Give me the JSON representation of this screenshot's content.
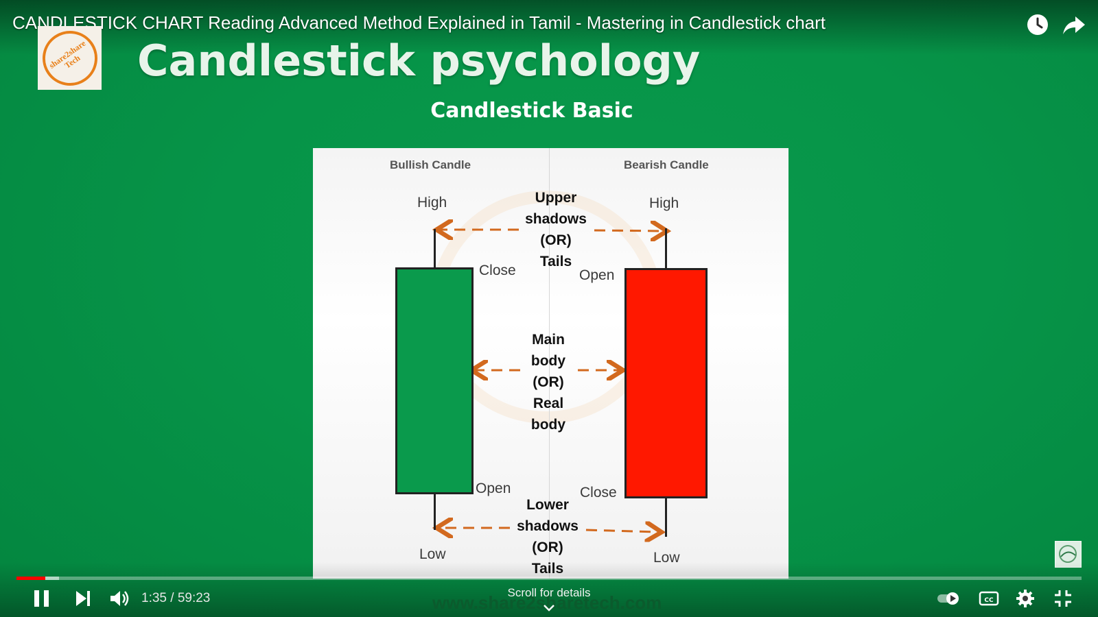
{
  "player": {
    "video_title": "CANDLESTICK CHART Reading Advanced Method Explained in Tamil - Mastering in Candlestick chart",
    "time_current": "1:35",
    "time_total": "59:23",
    "time_display": "1:35 / 59:23",
    "progress_fraction_played": 0.027,
    "progress_fraction_buffered": 0.04,
    "scroll_hint": "Scroll for details",
    "icons": {
      "watch_later": "clock-icon",
      "share": "share-arrow-icon",
      "pause": "pause-icon",
      "next": "skip-next-icon",
      "volume": "volume-icon",
      "autoplay": "autoplay-toggle-icon",
      "captions": "captions-icon",
      "settings": "gear-icon",
      "exit_fullscreen": "exit-fullscreen-icon",
      "branding": "channel-watermark-icon"
    },
    "colors": {
      "progress_played": "#ff0000",
      "background": "#069448"
    }
  },
  "slide": {
    "logo_text_line1": "share2share",
    "logo_text_line2": "Tech",
    "heading": "Candlestick psychology",
    "subheading": "Candlestick Basic",
    "website": "www.share2sharetech.com",
    "diagram": {
      "bullish_header": "Bullish Candle",
      "bearish_header": "Bearish Candle",
      "bullish_high": "High",
      "bullish_close": "Close",
      "bullish_open": "Open",
      "bullish_low": "Low",
      "bearish_high": "High",
      "bearish_open": "Open",
      "bearish_close": "Close",
      "bearish_low": "Low",
      "upper_line1": "Upper",
      "upper_line2": "shadows",
      "upper_line3": "(OR)",
      "upper_line4": "Tails",
      "main_line1": "Main",
      "main_line2": "body",
      "main_line3": "(OR)",
      "main_line4": "Real",
      "main_line5": "body",
      "lower_line1": "Lower",
      "lower_line2": "shadows",
      "lower_line3": "(OR)",
      "lower_line4": "Tails",
      "colors": {
        "bullish": "#0a9a4c",
        "bearish": "#ff1800",
        "arrow": "#d2691e"
      }
    }
  }
}
